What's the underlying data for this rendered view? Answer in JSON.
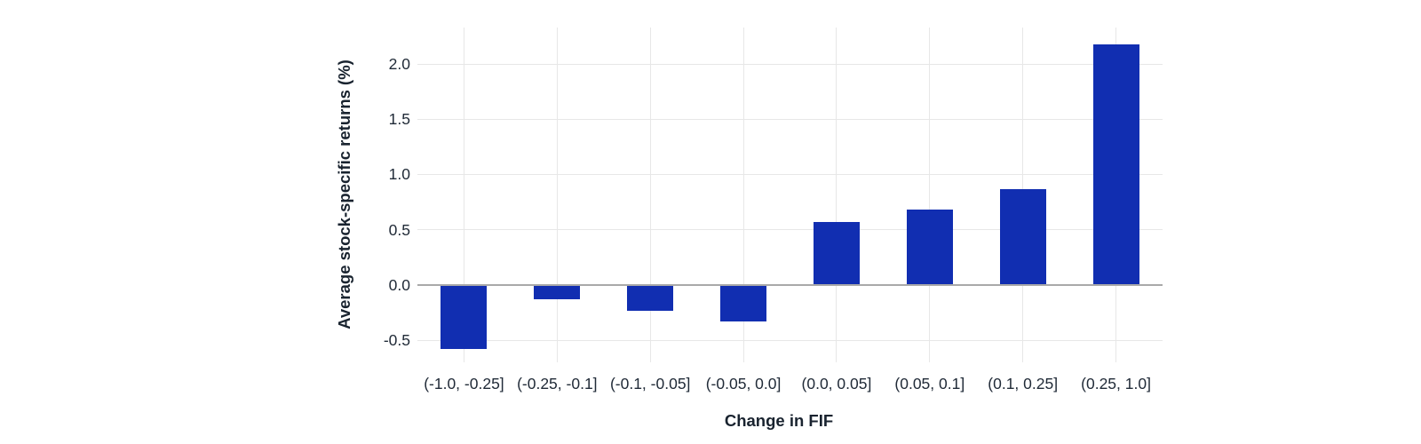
{
  "chart_data": {
    "type": "bar",
    "title": "",
    "xlabel": "Change in FIF",
    "ylabel": "Average stock-specific returns (%)",
    "categories": [
      "(-1.0, -0.25]",
      "(-0.25, -0.1]",
      "(-0.1, -0.05]",
      "(-0.05, 0.0]",
      "(0.0, 0.05]",
      "(0.05, 0.1]",
      "(0.1, 0.25]",
      "(0.25, 1.0]"
    ],
    "values": [
      -0.58,
      -0.13,
      -0.23,
      -0.33,
      0.57,
      0.68,
      0.87,
      2.18
    ],
    "yticks": [
      {
        "value": -0.5,
        "label": "-0.5"
      },
      {
        "value": 0.0,
        "label": "0.0"
      },
      {
        "value": 0.5,
        "label": "0.5"
      },
      {
        "value": 1.0,
        "label": "1.0"
      },
      {
        "value": 1.5,
        "label": "1.5"
      },
      {
        "value": 2.0,
        "label": "2.0"
      }
    ],
    "ylim": [
      -0.7,
      2.33
    ],
    "grid": true,
    "legend": "none",
    "colors": {
      "bar": "#112eb1",
      "grid": "#e7e7e7",
      "zero_line": "#a9a9a9",
      "axis_text": "#212b38",
      "title_text": "#19232f",
      "background": "#ffffff"
    }
  }
}
